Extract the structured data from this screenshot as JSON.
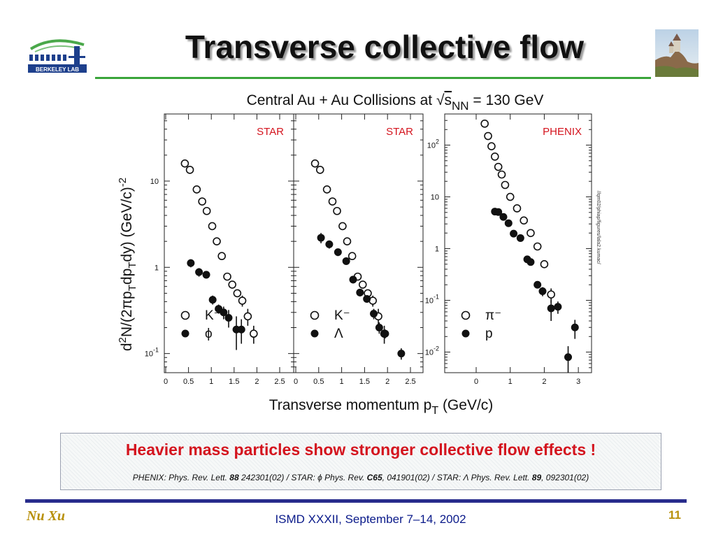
{
  "slide": {
    "title": "Transverse collective flow",
    "logo_text": "BERKELEY LAB",
    "callout": {
      "main": "Heavier mass particles show stronger collective flow effects !",
      "refs": [
        {
          "text": "PHENIX: Phys. Rev. Lett. ",
          "style": "normal"
        },
        {
          "text": "88",
          "style": "bold"
        },
        {
          "text": " 242301(02) / STAR: ",
          "style": "normal"
        },
        {
          "text": "ϕ",
          "style": "normal"
        },
        {
          "text": " Phys. Rev. ",
          "style": "normal"
        },
        {
          "text": "C65",
          "style": "bold"
        },
        {
          "text": ", 041901(02) / STAR: ",
          "style": "normal"
        },
        {
          "text": "Λ",
          "style": "normal"
        },
        {
          "text": " Phys. Rev. Lett. ",
          "style": "normal"
        },
        {
          "text": "89",
          "style": "bold"
        },
        {
          "text": ", 092301(02)",
          "style": "normal"
        }
      ]
    },
    "footer": {
      "author": "Nu Xu",
      "event": "ISMD XXXII, September 7–14, 2002",
      "page": "11"
    }
  },
  "figure_title": {
    "pre": "Central Au + Au Collisions at ",
    "sqrt": "√",
    "s": "s",
    "sub": "NN",
    "post": " = 130 GeV"
  },
  "shared_axes": {
    "xlabel_main": "Transverse momentum p",
    "xlabel_sub": "T",
    "xlabel_unit": " (GeV/c)",
    "ylabel_parts": [
      {
        "t": "d",
        "s": "n"
      },
      {
        "t": "2",
        "s": "sup"
      },
      {
        "t": "N/(2πp",
        "s": "n"
      },
      {
        "t": "T",
        "s": "sub"
      },
      {
        "t": "dp",
        "s": "n"
      },
      {
        "t": "T",
        "s": "sub"
      },
      {
        "t": "dy) (GeV/c)",
        "s": "n"
      },
      {
        "t": "-2",
        "s": "sup"
      }
    ]
  },
  "chart_data": [
    {
      "type": "scatter",
      "experiment": "STAR",
      "y_scale": "log",
      "ylim": [
        0.06,
        60
      ],
      "xlim": [
        0,
        2.5
      ],
      "x_ticks": [
        "0",
        "0.5",
        "1",
        "1.5",
        "2",
        "2.5"
      ],
      "y_ticks": [
        {
          "v": 10,
          "base": "10",
          "exp": ""
        },
        {
          "v": 1,
          "base": "1",
          "exp": ""
        },
        {
          "v": 0.1,
          "base": "10",
          "exp": "-1"
        }
      ],
      "series": [
        {
          "name": "K⁻",
          "marker": "open",
          "x": [
            0.42,
            0.53,
            0.68,
            0.8,
            0.9,
            1.02,
            1.12,
            1.23,
            1.35,
            1.46,
            1.57,
            1.68,
            1.8,
            1.93
          ],
          "y": [
            16,
            13.5,
            8,
            5.8,
            4.5,
            3,
            2,
            1.35,
            0.78,
            0.63,
            0.5,
            0.41,
            0.27,
            0.17
          ],
          "err": [
            0,
            0,
            0,
            0,
            0,
            0,
            0,
            0,
            0,
            0,
            0,
            0.06,
            0.06,
            0.04
          ]
        },
        {
          "name": "ϕ",
          "marker": "filled",
          "x": [
            0.55,
            0.73,
            0.89,
            1.03,
            1.16,
            1.27,
            1.38,
            1.55,
            1.66
          ],
          "y": [
            1.12,
            0.88,
            0.82,
            0.42,
            0.33,
            0.3,
            0.26,
            0.19,
            0.19
          ],
          "err": [
            0.12,
            0.1,
            0.08,
            0.05,
            0.04,
            0.05,
            0.06,
            0.08,
            0.06
          ]
        }
      ]
    },
    {
      "type": "scatter",
      "experiment": "STAR",
      "y_scale": "log",
      "ylim": [
        0.06,
        60
      ],
      "xlim": [
        0,
        2.5
      ],
      "x_ticks": [
        "0",
        "0.5",
        "1",
        "1.5",
        "2",
        "2.5"
      ],
      "y_ticks": [],
      "series": [
        {
          "name": "K⁻",
          "marker": "open",
          "x": [
            0.42,
            0.53,
            0.68,
            0.8,
            0.9,
            1.02,
            1.12,
            1.23,
            1.35,
            1.46,
            1.57,
            1.68,
            1.8,
            1.93
          ],
          "y": [
            16,
            13.5,
            8,
            5.8,
            4.5,
            3,
            2,
            1.35,
            0.78,
            0.63,
            0.5,
            0.41,
            0.27,
            0.17
          ],
          "err": [
            0,
            0,
            0,
            0,
            0,
            0,
            0,
            0,
            0,
            0,
            0,
            0.06,
            0.06,
            0.04
          ]
        },
        {
          "name": "Λ",
          "marker": "filled",
          "x": [
            0.55,
            0.73,
            0.92,
            1.1,
            1.25,
            1.4,
            1.55,
            1.7,
            1.82,
            1.95,
            2.3
          ],
          "y": [
            2.2,
            1.85,
            1.5,
            1.18,
            0.72,
            0.51,
            0.43,
            0.29,
            0.2,
            0.17,
            0.1
          ],
          "err": [
            0.3,
            0.2,
            0.15,
            0.1,
            0.07,
            0.05,
            0.04,
            0.04,
            0.03,
            0.02,
            0.015
          ]
        }
      ]
    },
    {
      "type": "scatter",
      "experiment": "PHENIX",
      "y_scale": "log",
      "ylim": [
        0.004,
        400
      ],
      "xlim": [
        0,
        3.1
      ],
      "x_ticks": [
        "0",
        "1",
        "2",
        "3"
      ],
      "y_ticks": [
        {
          "v": 100,
          "base": "10",
          "exp": "2"
        },
        {
          "v": 10,
          "base": "10",
          "exp": ""
        },
        {
          "v": 1,
          "base": "1",
          "exp": ""
        },
        {
          "v": 0.1,
          "base": "10",
          "exp": "-1"
        },
        {
          "v": 0.01,
          "base": "10",
          "exp": "-2"
        }
      ],
      "side_label": "//qm02/phiap/figures/lala2.kumac/",
      "series": [
        {
          "name": "π⁻",
          "marker": "open",
          "x": [
            0.25,
            0.35,
            0.45,
            0.55,
            0.65,
            0.75,
            0.85,
            1.0,
            1.2,
            1.4,
            1.6,
            1.8,
            2.0,
            2.2
          ],
          "y": [
            260,
            150,
            95,
            60,
            38,
            27,
            17,
            10,
            6,
            3.5,
            2,
            1.1,
            0.5,
            0.13
          ],
          "err": [
            0,
            0,
            0,
            0,
            0,
            0,
            0,
            0,
            0,
            0,
            0,
            0,
            0,
            0.04
          ]
        },
        {
          "name": "p",
          "marker": "filled",
          "x": [
            0.55,
            0.65,
            0.8,
            0.95,
            1.1,
            1.3,
            1.5,
            1.6,
            1.8,
            1.95,
            2.2,
            2.4,
            2.7,
            2.9
          ],
          "y": [
            5.2,
            5.1,
            4.1,
            3.1,
            1.95,
            1.6,
            0.62,
            0.55,
            0.2,
            0.15,
            0.07,
            0.075,
            0.008,
            0.03
          ],
          "err": [
            0.4,
            0.4,
            0.3,
            0.25,
            0.15,
            0.15,
            0.05,
            0.05,
            0.03,
            0.03,
            0.03,
            0.02,
            0.005,
            0.012
          ]
        }
      ]
    }
  ]
}
